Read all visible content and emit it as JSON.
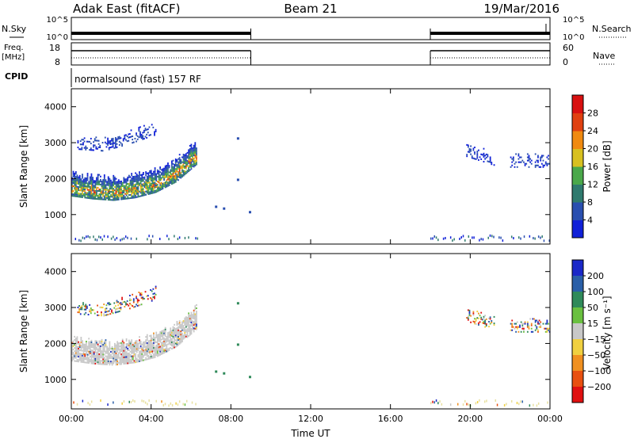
{
  "header": {
    "station": "Adak East (fitACF)",
    "beam": "Beam 21",
    "date": "19/Mar/2016"
  },
  "strips": {
    "nsky": {
      "label": "N.Sky",
      "ticks": [
        "10^5",
        "10^0"
      ]
    },
    "nsearch": {
      "label": "N.Search",
      "ticks": [
        "10^5",
        "10^0"
      ]
    },
    "freq": {
      "label_top": "Freq.",
      "label_bottom": "[MHz]",
      "ticks": [
        "18",
        "8"
      ]
    },
    "nave": {
      "label": "Nave",
      "ticks": [
        "60",
        "0"
      ]
    },
    "cpid": {
      "label": "CPID",
      "text": "normalsound (fast) 157 RF"
    }
  },
  "chart_data": [
    {
      "type": "heatmap",
      "name": "power",
      "ylabel": "Slant Range [km]",
      "xlabel": "",
      "ylim": [
        180,
        4500
      ],
      "xlim": [
        0,
        24
      ],
      "yticks": [
        "1000",
        "2000",
        "3000",
        "4000"
      ],
      "colorbar": {
        "label": "Power [dB]",
        "ticks": [
          "4",
          "8",
          "12",
          "16",
          "20",
          "24",
          "28"
        ],
        "colors": [
          "#1020d8",
          "#2a4fb0",
          "#2f7a6e",
          "#4aa84a",
          "#d8c020",
          "#f08a10",
          "#e04010",
          "#d81010"
        ]
      },
      "echo_bands": [
        {
          "t0": 0.0,
          "t1": 6.3,
          "r_start": [
            1500,
            1420,
            1380,
            1450,
            1600,
            1900,
            2400
          ],
          "level": "high"
        },
        {
          "t0": 0.3,
          "t1": 4.2,
          "r_start": [
            2800,
            2750,
            2950,
            3200
          ],
          "level": "low"
        },
        {
          "t0": 19.8,
          "t1": 21.2,
          "r_start": [
            2600,
            2350
          ],
          "level": "low"
        },
        {
          "t0": 22.0,
          "t1": 24.0,
          "r_start": [
            2300,
            2300
          ],
          "level": "low"
        }
      ]
    },
    {
      "type": "heatmap",
      "name": "velocity",
      "ylabel": "Slant Range [km]",
      "xlabel": "Time UT",
      "ylim": [
        180,
        4500
      ],
      "xlim": [
        0,
        24
      ],
      "xticks": [
        "00:00",
        "04:00",
        "08:00",
        "12:00",
        "16:00",
        "20:00",
        "00:00"
      ],
      "yticks": [
        "1000",
        "2000",
        "3000",
        "4000"
      ],
      "colorbar": {
        "label": "Velocity [m s⁻¹]",
        "ticks": [
          "200",
          "100",
          "50",
          "15",
          "−15",
          "−50",
          "−100",
          "−200"
        ],
        "colors": [
          "#1a28c8",
          "#2a5fa8",
          "#2f8a5a",
          "#6ac040",
          "#c8c8c8",
          "#f0d040",
          "#f09020",
          "#e85010",
          "#e01010"
        ]
      },
      "echo_bands": [
        {
          "t0": 0.0,
          "t1": 6.3,
          "r_start": [
            1500,
            1420,
            1380,
            1450,
            1600,
            1900,
            2400
          ],
          "level": "ground"
        },
        {
          "t0": 0.3,
          "t1": 4.2,
          "r_start": [
            2800,
            2750,
            2950,
            3200
          ],
          "level": "mixed"
        },
        {
          "t0": 19.8,
          "t1": 21.2,
          "r_start": [
            2600,
            2350
          ],
          "level": "mixed"
        },
        {
          "t0": 22.0,
          "t1": 24.0,
          "r_start": [
            2300,
            2300
          ],
          "level": "mixed"
        }
      ]
    }
  ],
  "operation": {
    "on1": [
      0.0,
      9.0
    ],
    "on2": [
      18.0,
      24.0
    ]
  }
}
